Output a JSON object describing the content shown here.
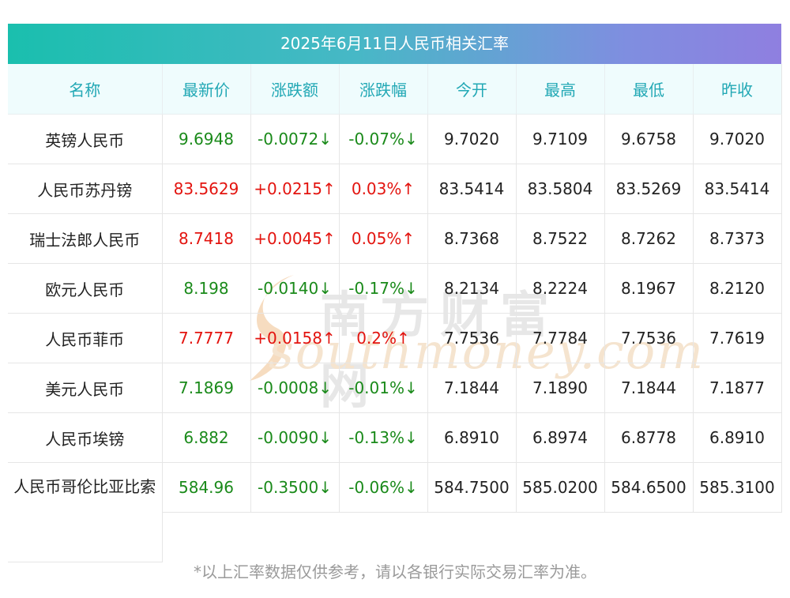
{
  "title": "2025年6月11日人民币相关汇率",
  "headers": [
    "名称",
    "最新价",
    "涨跌额",
    "涨跌幅",
    "今开",
    "最高",
    "最低",
    "昨收"
  ],
  "rows": [
    {
      "name": "英镑人民币",
      "last": "9.6948",
      "change": "-0.0072↓",
      "pct": "-0.07%↓",
      "open": "9.7020",
      "high": "9.7109",
      "low": "9.6758",
      "prev": "9.7020",
      "dir": "down"
    },
    {
      "name": "人民币苏丹镑",
      "last": "83.5629",
      "change": "+0.0215↑",
      "pct": "0.03%↑",
      "open": "83.5414",
      "high": "83.5804",
      "low": "83.5269",
      "prev": "83.5414",
      "dir": "up"
    },
    {
      "name": "瑞士法郎人民币",
      "last": "8.7418",
      "change": "+0.0045↑",
      "pct": "0.05%↑",
      "open": "8.7368",
      "high": "8.7522",
      "low": "8.7262",
      "prev": "8.7373",
      "dir": "up"
    },
    {
      "name": "欧元人民币",
      "last": "8.198",
      "change": "-0.0140↓",
      "pct": "-0.17%↓",
      "open": "8.2134",
      "high": "8.2224",
      "low": "8.1967",
      "prev": "8.2120",
      "dir": "down"
    },
    {
      "name": "人民币菲币",
      "last": "7.7777",
      "change": "+0.0158↑",
      "pct": "0.2%↑",
      "open": "7.7536",
      "high": "7.7784",
      "low": "7.7536",
      "prev": "7.7619",
      "dir": "up"
    },
    {
      "name": "美元人民币",
      "last": "7.1869",
      "change": "-0.0008↓",
      "pct": "-0.01%↓",
      "open": "7.1844",
      "high": "7.1890",
      "low": "7.1844",
      "prev": "7.1877",
      "dir": "down"
    },
    {
      "name": "人民币埃镑",
      "last": "6.882",
      "change": "-0.0090↓",
      "pct": "-0.13%↓",
      "open": "6.8910",
      "high": "6.8974",
      "low": "6.8778",
      "prev": "6.8910",
      "dir": "down"
    },
    {
      "name": "人民币哥伦比亚比索",
      "last": "584.96",
      "change": "-0.3500↓",
      "pct": "-0.06%↓",
      "open": "584.7500",
      "high": "585.0200",
      "low": "584.6500",
      "prev": "585.3100",
      "dir": "down"
    }
  ],
  "watermark": {
    "cn": "南方财富网",
    "en": "southmoney.com"
  },
  "note": "*以上汇率数据仅供参考，请以各银行实际交易汇率为准。",
  "colors": {
    "up": "#e3140f",
    "down": "#1a8a1a",
    "header_text": "#22a8b5",
    "header_bg": "#effcfd"
  }
}
